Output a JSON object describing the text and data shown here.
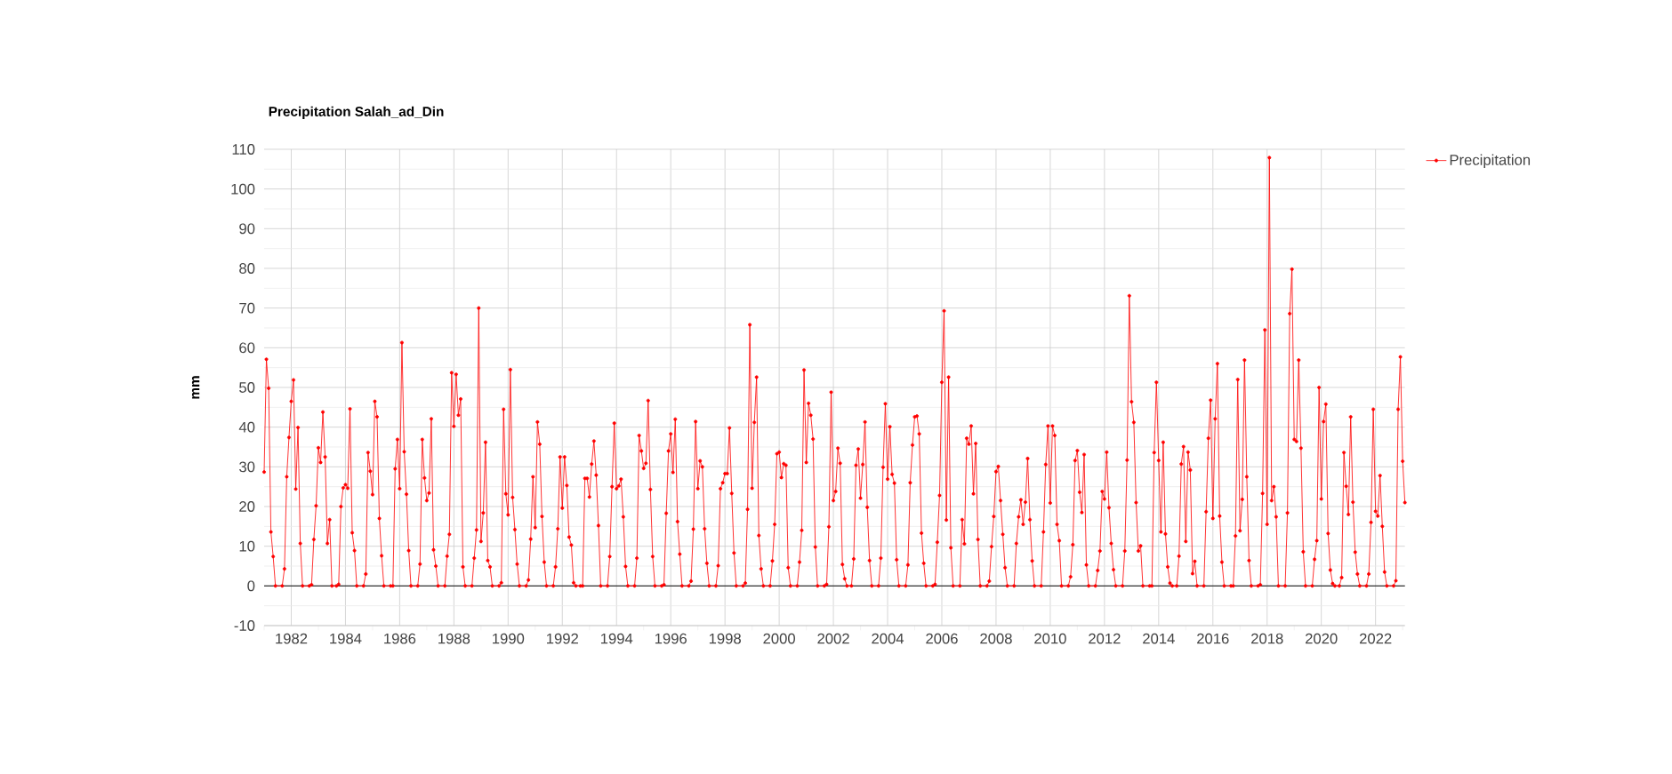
{
  "chart_data": {
    "type": "line",
    "title": "Precipitation Salah_ad_Din",
    "ylabel": "mm",
    "x": [
      "1981-01",
      "1981-02",
      "1981-03",
      "1981-04",
      "1981-05",
      "1981-06",
      "1981-09",
      "1981-10",
      "1981-11",
      "1981-12",
      "1982-01",
      "1982-02",
      "1982-03",
      "1982-04",
      "1982-05",
      "1982-06",
      "1982-09",
      "1982-10",
      "1982-11",
      "1982-12",
      "1983-01",
      "1983-02",
      "1983-03",
      "1983-04",
      "1983-05",
      "1983-06",
      "1983-07",
      "1983-09",
      "1983-10",
      "1983-11",
      "1983-12",
      "1984-01",
      "1984-02",
      "1984-03",
      "1984-04",
      "1984-05",
      "1984-06",
      "1984-09",
      "1984-10",
      "1984-11",
      "1984-12",
      "1985-01",
      "1985-02",
      "1985-03",
      "1985-04",
      "1985-05",
      "1985-06",
      "1985-09",
      "1985-10",
      "1985-11",
      "1985-12",
      "1986-01",
      "1986-02",
      "1986-03",
      "1986-04",
      "1986-05",
      "1986-06",
      "1986-09",
      "1986-10",
      "1986-11",
      "1986-12",
      "1987-01",
      "1987-02",
      "1987-03",
      "1987-04",
      "1987-05",
      "1987-06",
      "1987-09",
      "1987-10",
      "1987-11",
      "1987-12",
      "1988-01",
      "1988-02",
      "1988-03",
      "1988-04",
      "1988-05",
      "1988-06",
      "1988-09",
      "1988-10",
      "1988-11",
      "1988-12",
      "1989-01",
      "1989-02",
      "1989-03",
      "1989-04",
      "1989-05",
      "1989-06",
      "1989-09",
      "1989-10",
      "1989-11",
      "1989-12",
      "1990-01",
      "1990-02",
      "1990-03",
      "1990-04",
      "1990-05",
      "1990-06",
      "1990-09",
      "1990-10",
      "1990-11",
      "1990-12",
      "1991-01",
      "1991-02",
      "1991-03",
      "1991-04",
      "1991-05",
      "1991-06",
      "1991-09",
      "1991-10",
      "1991-11",
      "1991-12",
      "1992-01",
      "1992-02",
      "1992-03",
      "1992-04",
      "1992-05",
      "1992-06",
      "1992-07",
      "1992-09",
      "1992-10",
      "1992-11",
      "1992-12",
      "1993-01",
      "1993-02",
      "1993-03",
      "1993-04",
      "1993-05",
      "1993-06",
      "1993-09",
      "1993-10",
      "1993-11",
      "1993-12",
      "1994-01",
      "1994-02",
      "1994-03",
      "1994-04",
      "1994-05",
      "1994-06",
      "1994-09",
      "1994-10",
      "1994-11",
      "1994-12",
      "1995-01",
      "1995-02",
      "1995-03",
      "1995-04",
      "1995-05",
      "1995-06",
      "1995-09",
      "1995-10",
      "1995-11",
      "1995-12",
      "1996-01",
      "1996-02",
      "1996-03",
      "1996-04",
      "1996-05",
      "1996-06",
      "1996-09",
      "1996-10",
      "1996-11",
      "1996-12",
      "1997-01",
      "1997-02",
      "1997-03",
      "1997-04",
      "1997-05",
      "1997-06",
      "1997-09",
      "1997-10",
      "1997-11",
      "1997-12",
      "1998-01",
      "1998-02",
      "1998-03",
      "1998-04",
      "1998-05",
      "1998-06",
      "1998-09",
      "1998-10",
      "1998-11",
      "1998-12",
      "1999-01",
      "1999-02",
      "1999-03",
      "1999-04",
      "1999-05",
      "1999-06",
      "1999-09",
      "1999-10",
      "1999-11",
      "1999-12",
      "2000-01",
      "2000-02",
      "2000-03",
      "2000-04",
      "2000-05",
      "2000-06",
      "2000-09",
      "2000-10",
      "2000-11",
      "2000-12",
      "2001-01",
      "2001-02",
      "2001-03",
      "2001-04",
      "2001-05",
      "2001-06",
      "2001-09",
      "2001-10",
      "2001-11",
      "2001-12",
      "2002-01",
      "2002-02",
      "2002-03",
      "2002-04",
      "2002-05",
      "2002-06",
      "2002-07",
      "2002-09",
      "2002-10",
      "2002-11",
      "2002-12",
      "2003-01",
      "2003-02",
      "2003-03",
      "2003-04",
      "2003-05",
      "2003-06",
      "2003-09",
      "2003-10",
      "2003-11",
      "2003-12",
      "2004-01",
      "2004-02",
      "2004-03",
      "2004-04",
      "2004-05",
      "2004-06",
      "2004-09",
      "2004-10",
      "2004-11",
      "2004-12",
      "2005-01",
      "2005-02",
      "2005-03",
      "2005-04",
      "2005-05",
      "2005-06",
      "2005-09",
      "2005-10",
      "2005-11",
      "2005-12",
      "2006-01",
      "2006-02",
      "2006-03",
      "2006-04",
      "2006-05",
      "2006-06",
      "2006-09",
      "2006-10",
      "2006-11",
      "2006-12",
      "2007-01",
      "2007-02",
      "2007-03",
      "2007-04",
      "2007-05",
      "2007-06",
      "2007-09",
      "2007-10",
      "2007-11",
      "2007-12",
      "2008-01",
      "2008-02",
      "2008-03",
      "2008-04",
      "2008-05",
      "2008-06",
      "2008-09",
      "2008-10",
      "2008-11",
      "2008-12",
      "2009-01",
      "2009-02",
      "2009-03",
      "2009-04",
      "2009-05",
      "2009-06",
      "2009-09",
      "2009-10",
      "2009-11",
      "2009-12",
      "2010-01",
      "2010-02",
      "2010-03",
      "2010-04",
      "2010-05",
      "2010-06",
      "2010-09",
      "2010-10",
      "2010-11",
      "2010-12",
      "2011-01",
      "2011-02",
      "2011-03",
      "2011-04",
      "2011-05",
      "2011-06",
      "2011-09",
      "2011-10",
      "2011-11",
      "2011-12",
      "2012-01",
      "2012-02",
      "2012-03",
      "2012-04",
      "2012-05",
      "2012-06",
      "2012-09",
      "2012-10",
      "2012-11",
      "2012-12",
      "2013-01",
      "2013-02",
      "2013-03",
      "2013-04",
      "2013-05",
      "2013-06",
      "2013-09",
      "2013-10",
      "2013-11",
      "2013-12",
      "2014-01",
      "2014-02",
      "2014-03",
      "2014-04",
      "2014-05",
      "2014-06",
      "2014-07",
      "2014-09",
      "2014-10",
      "2014-11",
      "2014-12",
      "2015-01",
      "2015-02",
      "2015-03",
      "2015-04",
      "2015-05",
      "2015-06",
      "2015-09",
      "2015-10",
      "2015-11",
      "2015-12",
      "2016-01",
      "2016-02",
      "2016-03",
      "2016-04",
      "2016-05",
      "2016-06",
      "2016-09",
      "2016-10",
      "2016-11",
      "2016-12",
      "2017-01",
      "2017-02",
      "2017-03",
      "2017-04",
      "2017-05",
      "2017-06",
      "2017-09",
      "2017-10",
      "2017-11",
      "2017-12",
      "2018-01",
      "2018-02",
      "2018-03",
      "2018-04",
      "2018-05",
      "2018-06",
      "2018-09",
      "2018-10",
      "2018-11",
      "2018-12",
      "2019-01",
      "2019-02",
      "2019-03",
      "2019-04",
      "2019-05",
      "2019-06",
      "2019-09",
      "2019-10",
      "2019-11",
      "2019-12",
      "2020-01",
      "2020-02",
      "2020-03",
      "2020-04",
      "2020-05",
      "2020-06",
      "2020-07",
      "2020-09",
      "2020-10",
      "2020-11",
      "2020-12",
      "2021-01",
      "2021-02",
      "2021-03",
      "2021-04",
      "2021-05",
      "2021-06",
      "2021-09",
      "2021-10",
      "2021-11",
      "2021-12",
      "2022-01",
      "2022-02",
      "2022-03",
      "2022-04",
      "2022-05",
      "2022-06",
      "2022-09",
      "2022-10",
      "2022-11",
      "2022-12",
      "2023-01",
      "2023-02"
    ],
    "series": [
      {
        "name": "Precipitation",
        "color": "#ff0000",
        "values": [
          28.7,
          57.1,
          49.8,
          13.6,
          7.4,
          0,
          0,
          4.3,
          27.5,
          37.4,
          46.5,
          51.9,
          24.4,
          39.9,
          10.7,
          0,
          0,
          0.3,
          11.7,
          20.2,
          34.8,
          31.1,
          43.8,
          32.5,
          10.7,
          16.7,
          0,
          0,
          0.4,
          20,
          24.7,
          25.5,
          24.6,
          44.6,
          13.4,
          8.9,
          0,
          0,
          3,
          33.6,
          28.9,
          23,
          46.5,
          42.6,
          17,
          7.6,
          0,
          0,
          0,
          29.5,
          36.9,
          24.5,
          61.3,
          33.8,
          23.1,
          8.9,
          0,
          0,
          5.5,
          36.9,
          27.2,
          21.5,
          23.4,
          42.1,
          9.1,
          5,
          0,
          0,
          7.5,
          13,
          53.7,
          40.2,
          53.3,
          43,
          47.1,
          4.8,
          0,
          0,
          7,
          14.1,
          70,
          11.2,
          18.4,
          36.2,
          6.4,
          4.8,
          0,
          0,
          0.8,
          44.5,
          23.2,
          17.9,
          54.5,
          22.3,
          14.2,
          5.5,
          0,
          0,
          1.5,
          11.8,
          27.5,
          14.7,
          41.3,
          35.7,
          17.5,
          6,
          0,
          0,
          4.8,
          14.4,
          32.5,
          19.6,
          32.5,
          25.3,
          12.3,
          10.3,
          0.8,
          0,
          0,
          0,
          27.1,
          27.1,
          22.4,
          30.7,
          36.5,
          27.9,
          15.2,
          0,
          0,
          7.4,
          25,
          41,
          24.5,
          25.2,
          26.9,
          17.4,
          4.9,
          0,
          0,
          7,
          37.9,
          34,
          29.6,
          30.9,
          46.7,
          24.3,
          7.4,
          0,
          0,
          0.3,
          18.3,
          34,
          38.3,
          28.6,
          42,
          16.2,
          8,
          0,
          0,
          1.2,
          14.3,
          41.4,
          24.5,
          31.5,
          30,
          14.4,
          5.7,
          0,
          0,
          5.1,
          24.5,
          26,
          28.3,
          28.3,
          39.8,
          23.3,
          8.3,
          0,
          0,
          0.7,
          19.3,
          65.8,
          24.6,
          41.2,
          52.6,
          12.7,
          4.3,
          0,
          0,
          6.3,
          15.5,
          33.3,
          33.7,
          27.3,
          30.8,
          30.4,
          4.6,
          0,
          0,
          6,
          14,
          54.4,
          31.1,
          46,
          43,
          37,
          9.8,
          0,
          0,
          0.4,
          14.9,
          48.8,
          21.5,
          23.8,
          34.7,
          30.9,
          5.4,
          1.8,
          0,
          0,
          6.8,
          30.4,
          34.5,
          22.1,
          30.6,
          41.3,
          19.8,
          6.4,
          0,
          0,
          7,
          29.9,
          45.9,
          26.9,
          40.1,
          28.1,
          25.9,
          6.6,
          0,
          0,
          5.3,
          26,
          35.5,
          42.6,
          42.8,
          38.3,
          13.3,
          5.7,
          0,
          0,
          0.4,
          11,
          22.8,
          51.3,
          69.3,
          16.6,
          52.6,
          9.6,
          0,
          0,
          16.7,
          10.6,
          37.2,
          35.7,
          40.3,
          23.2,
          35.9,
          11.7,
          0,
          0,
          1.2,
          9.9,
          17.5,
          28.8,
          30.1,
          21.5,
          13,
          4.6,
          0,
          0,
          10.7,
          17.4,
          21.7,
          15.5,
          21.1,
          32.1,
          16.7,
          6.3,
          0,
          0,
          13.6,
          30.6,
          40.3,
          20.9,
          40.3,
          37.9,
          15.5,
          11.4,
          0,
          0,
          2.3,
          10.4,
          31.6,
          34.1,
          23.6,
          18.5,
          33.1,
          5.3,
          0,
          0,
          3.9,
          8.8,
          23.8,
          21.9,
          33.7,
          19.7,
          10.7,
          4.1,
          0,
          0,
          8.8,
          31.7,
          73.1,
          46.4,
          41.2,
          21,
          8.8,
          10.1,
          0,
          0,
          0,
          33.6,
          51.3,
          31.6,
          13.6,
          36.2,
          13.1,
          4.8,
          0.7,
          0,
          0,
          7.5,
          30.7,
          35.1,
          11.2,
          33.7,
          29.2,
          3.1,
          6.2,
          0,
          0,
          18.7,
          37.2,
          46.8,
          17,
          42.1,
          56,
          17.6,
          6,
          0,
          0,
          0,
          12.6,
          52,
          13.9,
          21.8,
          56.9,
          27.5,
          6.4,
          0,
          0,
          0.3,
          23.3,
          64.5,
          15.5,
          107.9,
          21.5,
          25,
          17.4,
          0,
          0,
          18.4,
          68.6,
          79.8,
          36.9,
          36.4,
          56.9,
          34.7,
          8.6,
          0,
          0,
          6.7,
          11.4,
          50,
          21.9,
          41.4,
          45.8,
          13.2,
          4,
          0.6,
          0,
          0,
          2.1,
          33.6,
          25.1,
          18,
          42.6,
          21.1,
          8.5,
          3,
          0,
          0,
          3,
          16,
          44.5,
          18.8,
          17.6,
          27.8,
          15,
          3.5,
          0,
          0,
          1.3,
          44.5,
          57.7,
          31.4,
          21
        ]
      }
    ],
    "xlim": [
      "1981-01",
      "2023-02"
    ],
    "xticks": [
      {
        "value": "1981",
        "label": null
      },
      "1982",
      {
        "value": "1983",
        "label": null
      },
      "1984",
      {
        "value": "1985",
        "label": null
      },
      "1986",
      {
        "value": "1987",
        "label": null
      },
      "1988",
      {
        "value": "1989",
        "label": null
      },
      "1990",
      {
        "value": "1991",
        "label": null
      },
      "1992",
      {
        "value": "1993",
        "label": null
      },
      "1994",
      {
        "value": "1995",
        "label": null
      },
      "1996",
      {
        "value": "1997",
        "label": null
      },
      "1998",
      {
        "value": "1999",
        "label": null
      },
      "2000",
      {
        "value": "2001",
        "label": null
      },
      "2002",
      {
        "value": "2003",
        "label": null
      },
      "2004",
      {
        "value": "2005",
        "label": null
      },
      "2006",
      {
        "value": "2007",
        "label": null
      },
      "2008",
      {
        "value": "2009",
        "label": null
      },
      "2010",
      {
        "value": "2011",
        "label": null
      },
      "2012",
      {
        "value": "2013",
        "label": null
      },
      "2014",
      {
        "value": "2015",
        "label": null
      },
      "2016",
      {
        "value": "2017",
        "label": null
      },
      "2018",
      {
        "value": "2019",
        "label": null
      },
      "2020",
      {
        "value": "2021",
        "label": null
      },
      "2022",
      {
        "value": "2023",
        "label": null
      }
    ],
    "ylim": [
      -10,
      110
    ],
    "yticks": [
      -10,
      {
        "value": -5,
        "label": null
      },
      0,
      {
        "value": 5,
        "label": null
      },
      10,
      {
        "value": 15,
        "label": null
      },
      20,
      {
        "value": 25,
        "label": null
      },
      30,
      {
        "value": 35,
        "label": null
      },
      40,
      {
        "value": 45,
        "label": null
      },
      50,
      {
        "value": 55,
        "label": null
      },
      60,
      {
        "value": 65,
        "label": null
      },
      70,
      {
        "value": 75,
        "label": null
      },
      80,
      {
        "value": 85,
        "label": null
      },
      90,
      {
        "value": 95,
        "label": null
      },
      100,
      {
        "value": 105,
        "label": null
      },
      110
    ],
    "ref_lines": [
      {
        "axis": "y",
        "value": 0,
        "color": "#333333"
      }
    ],
    "grid": true,
    "legend": "top right",
    "marker": "circle",
    "line_style": "solid"
  }
}
